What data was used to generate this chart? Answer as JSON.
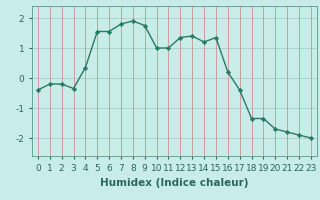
{
  "x": [
    0,
    1,
    2,
    3,
    4,
    5,
    6,
    7,
    8,
    9,
    10,
    11,
    12,
    13,
    14,
    15,
    16,
    17,
    18,
    19,
    20,
    21,
    22,
    23
  ],
  "y": [
    -0.4,
    -0.2,
    -0.2,
    -0.35,
    0.35,
    1.55,
    1.55,
    1.8,
    1.9,
    1.75,
    1.0,
    1.0,
    1.35,
    1.4,
    1.2,
    1.35,
    0.2,
    -0.4,
    -1.35,
    -1.35,
    -1.7,
    -1.8,
    -1.9,
    -2.0
  ],
  "line_color": "#2a7a65",
  "marker": "D",
  "marker_size": 2.2,
  "bg_color": "#c8ece8",
  "grid_color_v": "#d08080",
  "grid_color_h": "#a8c8c4",
  "xlabel": "Humidex (Indice chaleur)",
  "xlabel_fontsize": 7.5,
  "ylabel_ticks": [
    -2,
    -1,
    0,
    1,
    2
  ],
  "xtick_labels": [
    "0",
    "1",
    "2",
    "3",
    "4",
    "5",
    "6",
    "7",
    "8",
    "9",
    "10",
    "11",
    "12",
    "13",
    "14",
    "15",
    "16",
    "17",
    "18",
    "19",
    "20",
    "21",
    "22",
    "23"
  ],
  "ylim": [
    -2.6,
    2.4
  ],
  "xlim": [
    -0.5,
    23.5
  ],
  "tick_fontsize": 6.5,
  "line_width": 1.0,
  "tick_color": "#2a6858",
  "label_color": "#2a6858"
}
